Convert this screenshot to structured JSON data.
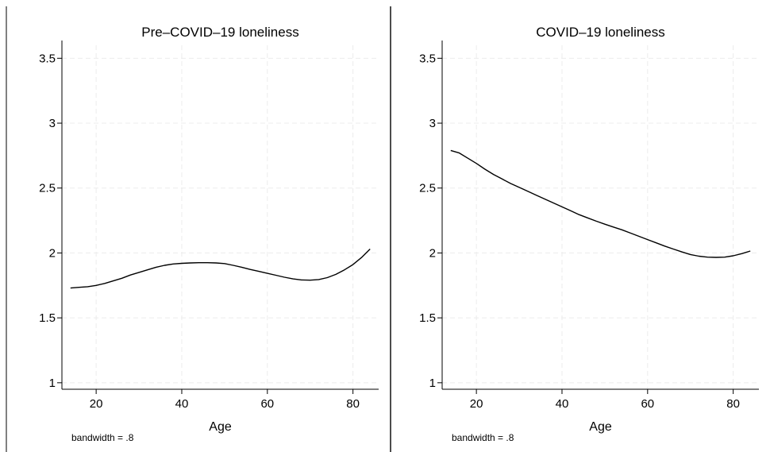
{
  "chart_data": [
    {
      "type": "line",
      "title": "Pre–COVID–19 loneliness",
      "xlabel": "Age",
      "ylabel": "",
      "note": "bandwidth = .8",
      "xlim": [
        12,
        86
      ],
      "ylim": [
        0.95,
        3.6
      ],
      "xticks": [
        20,
        40,
        60,
        80
      ],
      "yticks": [
        1,
        1.5,
        2,
        2.5,
        3,
        3.5
      ],
      "ytick_labels": [
        "1",
        "1.5",
        "2",
        "2.5",
        "3",
        "3.5"
      ],
      "grid": true,
      "series": [
        {
          "x": [
            14,
            16,
            18,
            20,
            22,
            24,
            26,
            28,
            30,
            32,
            34,
            36,
            38,
            40,
            42,
            44,
            46,
            48,
            50,
            52,
            54,
            56,
            58,
            60,
            62,
            64,
            66,
            68,
            70,
            72,
            74,
            76,
            78,
            80,
            82,
            84
          ],
          "y": [
            1.73,
            1.735,
            1.74,
            1.75,
            1.765,
            1.785,
            1.805,
            1.83,
            1.85,
            1.87,
            1.89,
            1.905,
            1.915,
            1.92,
            1.923,
            1.925,
            1.925,
            1.923,
            1.918,
            1.905,
            1.89,
            1.873,
            1.858,
            1.843,
            1.828,
            1.813,
            1.8,
            1.792,
            1.79,
            1.795,
            1.81,
            1.835,
            1.87,
            1.91,
            1.965,
            2.03
          ]
        }
      ]
    },
    {
      "type": "line",
      "title": "COVID–19 loneliness",
      "xlabel": "Age",
      "ylabel": "",
      "note": "bandwidth = .8",
      "xlim": [
        12,
        86
      ],
      "ylim": [
        0.95,
        3.6
      ],
      "xticks": [
        20,
        40,
        60,
        80
      ],
      "yticks": [
        1,
        1.5,
        2,
        2.5,
        3,
        3.5
      ],
      "ytick_labels": [
        "1",
        "1.5",
        "2",
        "2.5",
        "3",
        "3.5"
      ],
      "grid": true,
      "series": [
        {
          "x": [
            14,
            16,
            18,
            20,
            22,
            24,
            26,
            28,
            30,
            32,
            34,
            36,
            38,
            40,
            42,
            44,
            46,
            48,
            50,
            52,
            54,
            56,
            58,
            60,
            62,
            64,
            66,
            68,
            70,
            72,
            74,
            76,
            78,
            80,
            82,
            84
          ],
          "y": [
            2.79,
            2.77,
            2.73,
            2.69,
            2.645,
            2.605,
            2.57,
            2.535,
            2.505,
            2.475,
            2.445,
            2.415,
            2.385,
            2.355,
            2.325,
            2.295,
            2.27,
            2.245,
            2.222,
            2.2,
            2.178,
            2.153,
            2.128,
            2.103,
            2.078,
            2.053,
            2.03,
            2.008,
            1.988,
            1.975,
            1.968,
            1.966,
            1.968,
            1.978,
            1.995,
            2.015
          ]
        }
      ]
    }
  ]
}
